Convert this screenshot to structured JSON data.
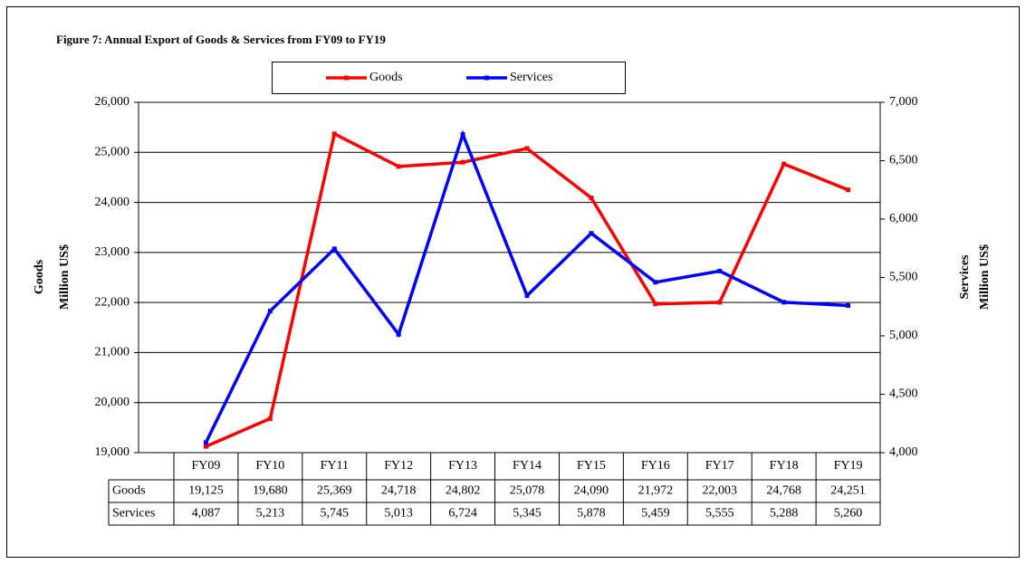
{
  "chart_data": {
    "type": "line",
    "title": "Figure 7: Annual Export of Goods & Services from FY09 to FY19",
    "categories": [
      "FY09",
      "FY10",
      "FY11",
      "FY12",
      "FY13",
      "FY14",
      "FY15",
      "FY16",
      "FY17",
      "FY18",
      "FY19"
    ],
    "series": [
      {
        "name": "Goods",
        "color": "#ff0000",
        "values": [
          19125,
          19680,
          25369,
          24718,
          24802,
          25078,
          24090,
          21972,
          22003,
          24768,
          24251
        ],
        "value_labels": [
          "19,125",
          "19,680",
          "25,369",
          "24,718",
          "24,802",
          "25,078",
          "24,090",
          "21,972",
          "22,003",
          "24,768",
          "24,251"
        ]
      },
      {
        "name": "Services",
        "color": "#0000ff",
        "axis": "y2",
        "values": [
          4087,
          5213,
          5745,
          5013,
          6724,
          5345,
          5878,
          5459,
          5555,
          5288,
          5260
        ],
        "value_labels": [
          "4,087",
          "5,213",
          "5,745",
          "5,013",
          "6,724",
          "5,345",
          "5,878",
          "5,459",
          "5,555",
          "5,288",
          "5,260"
        ]
      }
    ],
    "y_label": [
      "Goods",
      "Million US$"
    ],
    "y2_label": [
      "Services",
      "Million US$"
    ],
    "ylim": [
      19000,
      26000
    ],
    "yticks": [
      {
        "value": 19000,
        "label": "19,000"
      },
      {
        "value": 20000,
        "label": "20,000"
      },
      {
        "value": 21000,
        "label": "21,000"
      },
      {
        "value": 22000,
        "label": "22,000"
      },
      {
        "value": 23000,
        "label": "23,000"
      },
      {
        "value": 24000,
        "label": "24,000"
      },
      {
        "value": 25000,
        "label": "25,000"
      },
      {
        "value": 26000,
        "label": "26,000"
      }
    ],
    "y2lim": [
      4000,
      7000
    ],
    "y2ticks": [
      {
        "value": 4000,
        "label": "4,000"
      },
      {
        "value": 4500,
        "label": "4,500"
      },
      {
        "value": 5000,
        "label": "5,000"
      },
      {
        "value": 5500,
        "label": "5,500"
      },
      {
        "value": 6000,
        "label": "6,000"
      },
      {
        "value": 6500,
        "label": "6,500"
      },
      {
        "value": 7000,
        "label": "7,000"
      }
    ],
    "grid": true,
    "legend": "top"
  }
}
